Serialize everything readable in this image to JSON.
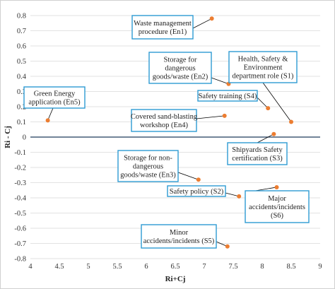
{
  "chart_data": {
    "type": "scatter",
    "xlabel": "Ri+Cj",
    "ylabel": "Ri - Cj",
    "xlim": [
      4,
      9
    ],
    "ylim": [
      -0.8,
      0.8
    ],
    "x_ticks": [
      "4",
      "4.5",
      "5",
      "5.5",
      "6",
      "6.5",
      "7",
      "7.5",
      "8",
      "8.5",
      "9"
    ],
    "y_ticks": [
      "0.8",
      "0.7",
      "0.6",
      "0.5",
      "0.4",
      "0.3",
      "0.2",
      "0.1",
      "0",
      "-0.1",
      "-0.2",
      "-0.3",
      "-0.4",
      "-0.5",
      "-0.6",
      "-0.7",
      "-0.8"
    ],
    "grid": "horizontal",
    "marker_color": "#ec7d31",
    "annotation_border_color": "#2e9bd3",
    "points": [
      {
        "id": "En1",
        "x": 7.13,
        "y": 0.78,
        "label": [
          "Waste management",
          "procedure (En1)"
        ]
      },
      {
        "id": "En2",
        "x": 7.42,
        "y": 0.35,
        "label": [
          "Storage for",
          "dangerous",
          "goods/waste (En2)"
        ]
      },
      {
        "id": "S1",
        "x": 8.5,
        "y": 0.1,
        "label": [
          "Health, Safety &",
          "Environment",
          "department role (S1)"
        ]
      },
      {
        "id": "S4",
        "x": 8.1,
        "y": 0.19,
        "label": [
          "Safety training (S4)"
        ]
      },
      {
        "id": "En5",
        "x": 4.3,
        "y": 0.11,
        "label": [
          "Green Energy",
          "application (En5)"
        ]
      },
      {
        "id": "En4",
        "x": 7.35,
        "y": 0.14,
        "label": [
          "Covered sand-blasting",
          "workshop (En4)"
        ]
      },
      {
        "id": "S3",
        "x": 8.2,
        "y": 0.02,
        "label": [
          "Shipyards Safety",
          "certification (S3)"
        ]
      },
      {
        "id": "En3",
        "x": 6.9,
        "y": -0.28,
        "label": [
          "Storage for non-",
          "dangerous",
          "goods/waste (En3)"
        ]
      },
      {
        "id": "S2",
        "x": 7.6,
        "y": -0.39,
        "label": [
          "Safety policy (S2)"
        ]
      },
      {
        "id": "S6",
        "x": 8.25,
        "y": -0.33,
        "label": [
          "Major",
          "accidents/incidents",
          "(S6)"
        ]
      },
      {
        "id": "S5",
        "x": 7.4,
        "y": -0.72,
        "label": [
          "Minor",
          "accidents/incidents (S5)"
        ]
      }
    ]
  }
}
